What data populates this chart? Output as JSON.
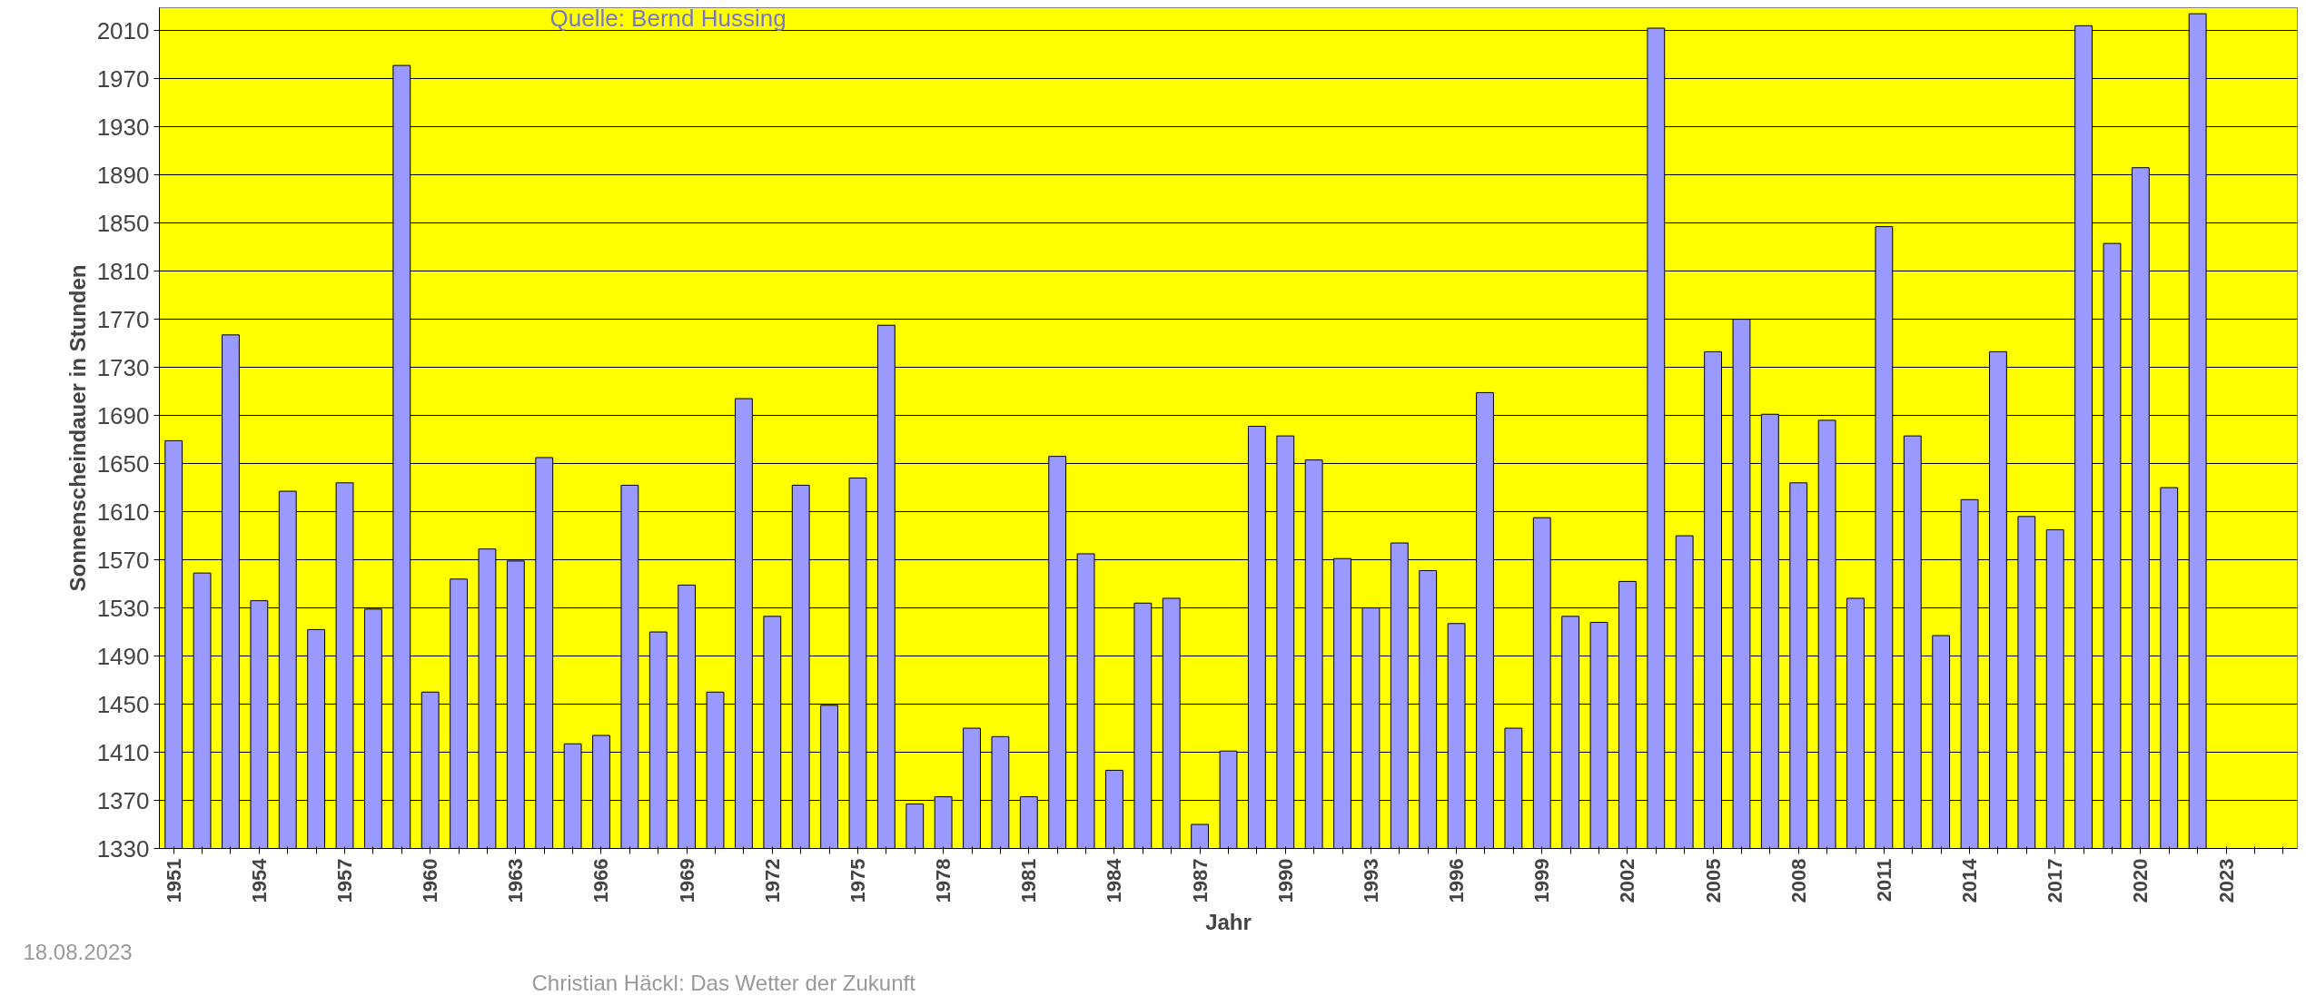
{
  "chart_data": {
    "type": "bar",
    "xlabel": "Jahr",
    "ylabel": "Sonnenscheindauer in Stunden",
    "annotations": [
      "Quelle: Bernd Hussing",
      "18.08.2023",
      "Christian Häckl: Das Wetter der Zukunft"
    ],
    "categories": [
      "1951",
      null,
      null,
      "1954",
      null,
      null,
      "1957",
      null,
      null,
      "1960",
      null,
      null,
      "1963",
      null,
      null,
      "1966",
      null,
      null,
      "1969",
      null,
      null,
      "1972",
      null,
      null,
      "1975",
      null,
      null,
      "1978",
      null,
      null,
      "1981",
      null,
      null,
      "1984",
      null,
      null,
      "1987",
      null,
      null,
      "1990",
      null,
      null,
      "1993",
      null,
      null,
      "1996",
      null,
      null,
      "1999",
      null,
      null,
      "2002",
      null,
      null,
      "2005",
      null,
      null,
      "2008",
      null,
      null,
      "2011",
      null,
      null,
      "2014",
      null,
      null,
      "2017",
      null,
      null,
      "2020",
      null,
      null,
      "2023",
      null,
      null
    ],
    "values": [
      1669,
      1559,
      1757,
      1536,
      1627,
      1512,
      1634,
      1529,
      1981,
      1460,
      1554,
      1579,
      1569,
      1655,
      1417,
      1424,
      1632,
      1510,
      1549,
      1460,
      1704,
      1523,
      1632,
      1449,
      1638,
      1765,
      1367,
      1373,
      1430,
      1423,
      1373,
      1656,
      1575,
      1395,
      1534,
      1538,
      1350,
      1411,
      1681,
      1673,
      1653,
      1571,
      1530,
      1584,
      1561,
      1517,
      1709,
      1430,
      1605,
      1523,
      1518,
      1552,
      2012,
      1590,
      1743,
      1770,
      1691,
      1634,
      1686,
      1538,
      1847,
      1673,
      1507,
      1620,
      1743,
      1606,
      1595,
      2014,
      1833,
      1896,
      1630,
      2024,
      null,
      null,
      null
    ],
    "color": "#9999ff",
    "ylim": [
      1330,
      2029
    ],
    "yticks": [
      1330,
      1370,
      1410,
      1450,
      1490,
      1530,
      1570,
      1610,
      1650,
      1690,
      1730,
      1770,
      1810,
      1850,
      1890,
      1930,
      1970,
      2010
    ],
    "grid": "y"
  }
}
